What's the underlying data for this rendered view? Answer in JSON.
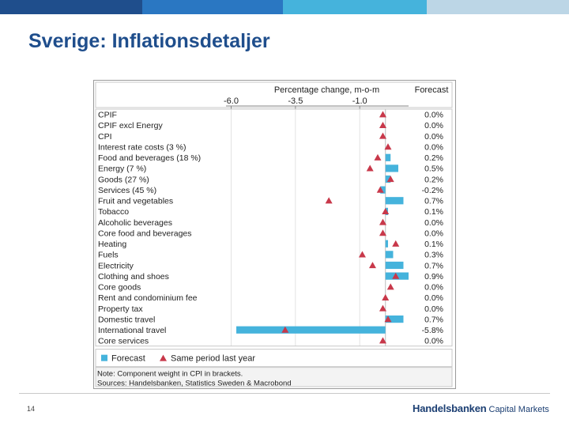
{
  "slide": {
    "title": "Sverige: Inflationsdetaljer",
    "page_number": "14",
    "logo_brand": "Handelsbanken",
    "logo_unit": "Capital Markets"
  },
  "colors": {
    "topbar": [
      "#1f4e8c",
      "#2a77c2",
      "#45b3dc",
      "#bcd6e6"
    ],
    "bar": "#45b3dc",
    "marker": "#c8384a",
    "title": "#1f4e8c"
  },
  "chart_data": {
    "type": "bar",
    "orientation": "horizontal",
    "axis_title": "Percentage change, m-o-m",
    "forecast_header": "Forecast",
    "x_ticks": [
      -6.0,
      -3.5,
      -1.0
    ],
    "x_tick_labels": [
      "-6.0",
      "-3.5",
      "-1.0"
    ],
    "xlim": [
      -6.2,
      0.9
    ],
    "grid": true,
    "categories": [
      "CPIF",
      "CPIF excl Energy",
      "CPI",
      "Interest rate costs (3 %)",
      "Food and beverages (18 %)",
      "Energy (7 %)",
      "Goods (27 %)",
      "Services (45 %)",
      "Fruit and vegetables",
      "Tobacco",
      "Alcoholic beverages",
      "Core food and beverages",
      "Heating",
      "Fuels",
      "Electricity",
      "Clothing and shoes",
      "Core goods",
      "Rent and condominium fee",
      "Property tax",
      "Domestic travel",
      "International travel",
      "Core services"
    ],
    "series": [
      {
        "name": "Forecast",
        "values": [
          0.0,
          0.0,
          0.0,
          0.0,
          0.2,
          0.5,
          0.2,
          -0.2,
          0.7,
          0.1,
          0.0,
          0.0,
          0.1,
          0.3,
          0.7,
          0.9,
          0.0,
          0.0,
          0.0,
          0.7,
          -5.8,
          0.0
        ]
      },
      {
        "name": "Same period last year",
        "values": [
          -0.1,
          -0.1,
          -0.1,
          0.1,
          -0.3,
          -0.6,
          0.2,
          -0.2,
          -2.2,
          0.0,
          -0.1,
          -0.1,
          0.4,
          -0.9,
          -0.5,
          0.4,
          0.2,
          0.0,
          -0.1,
          0.1,
          -3.9,
          -0.1
        ]
      }
    ],
    "forecast_labels": [
      "0.0%",
      "0.0%",
      "0.0%",
      "0.0%",
      "0.2%",
      "0.5%",
      "0.2%",
      "-0.2%",
      "0.7%",
      "0.1%",
      "0.0%",
      "0.0%",
      "0.1%",
      "0.3%",
      "0.7%",
      "0.9%",
      "0.0%",
      "0.0%",
      "0.0%",
      "0.7%",
      "-5.8%",
      "0.0%"
    ],
    "legend": [
      "Forecast",
      "Same period last year"
    ],
    "legend_position": "bottom",
    "notes": [
      "Note: Component weight in CPI in brackets.",
      "Sources: Handelsbanken, Statistics Sweden & Macrobond"
    ]
  }
}
